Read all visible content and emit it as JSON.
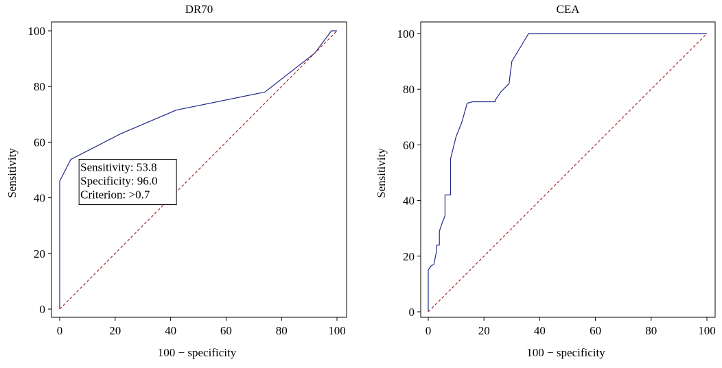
{
  "chart_data": [
    {
      "type": "line",
      "title": "DR70",
      "xlabel": "100 − specificity",
      "ylabel": "Sensitivity",
      "xlim": [
        0,
        100
      ],
      "ylim": [
        0,
        100
      ],
      "xticks": [
        0,
        20,
        40,
        60,
        80,
        100
      ],
      "yticks": [
        0,
        20,
        40,
        60,
        80,
        100
      ],
      "tick_labels_x": [
        "0",
        "20",
        "40",
        "60",
        "80",
        "100"
      ],
      "tick_labels_y": [
        "0",
        "20",
        "40",
        "60",
        "80",
        "100"
      ],
      "series": [
        {
          "role": "roc-curve",
          "color": "#1f2a8a",
          "style": "solid",
          "x": [
            0,
            0,
            4,
            22,
            42,
            74,
            92,
            98,
            100
          ],
          "y": [
            0,
            46,
            53.8,
            63,
            71.5,
            78,
            92,
            100,
            100
          ]
        },
        {
          "role": "reference-diagonal",
          "color": "#a0282a",
          "style": "dashed",
          "x": [
            0,
            100
          ],
          "y": [
            0,
            100
          ]
        }
      ],
      "annotation": {
        "lines": [
          "Sensitivity: 53.8",
          "Specificity: 96.0",
          "Criterion: >0.7"
        ],
        "x": 4,
        "y": 53.8
      },
      "grid": false
    },
    {
      "type": "line",
      "title": "CEA",
      "xlabel": "100 − specificity",
      "ylabel": "Sensitivity",
      "xlim": [
        0,
        100
      ],
      "ylim": [
        0,
        100
      ],
      "xticks": [
        0,
        20,
        40,
        60,
        80,
        100
      ],
      "yticks": [
        0,
        20,
        40,
        60,
        80,
        100
      ],
      "tick_labels_x": [
        "0",
        "20",
        "40",
        "60",
        "80",
        "100"
      ],
      "tick_labels_y": [
        "0",
        "20",
        "40",
        "60",
        "80",
        "100"
      ],
      "series": [
        {
          "role": "roc-curve",
          "color": "#1f2a8a",
          "style": "solid",
          "x": [
            0,
            0,
            1,
            2,
            3,
            3,
            4,
            4,
            5,
            6,
            6,
            7,
            8,
            8,
            9,
            10,
            12,
            14,
            16,
            24,
            24,
            26,
            29,
            30,
            36,
            36,
            100
          ],
          "y": [
            0,
            15,
            16.5,
            17,
            22,
            24,
            24,
            29,
            32,
            34.5,
            42,
            42,
            42,
            55,
            59,
            63,
            68,
            75,
            75.5,
            75.5,
            76,
            79,
            82,
            90,
            100,
            100,
            100
          ]
        },
        {
          "role": "reference-diagonal",
          "color": "#a0282a",
          "style": "dashed",
          "x": [
            0,
            100
          ],
          "y": [
            0,
            100
          ]
        }
      ],
      "grid": false
    }
  ]
}
